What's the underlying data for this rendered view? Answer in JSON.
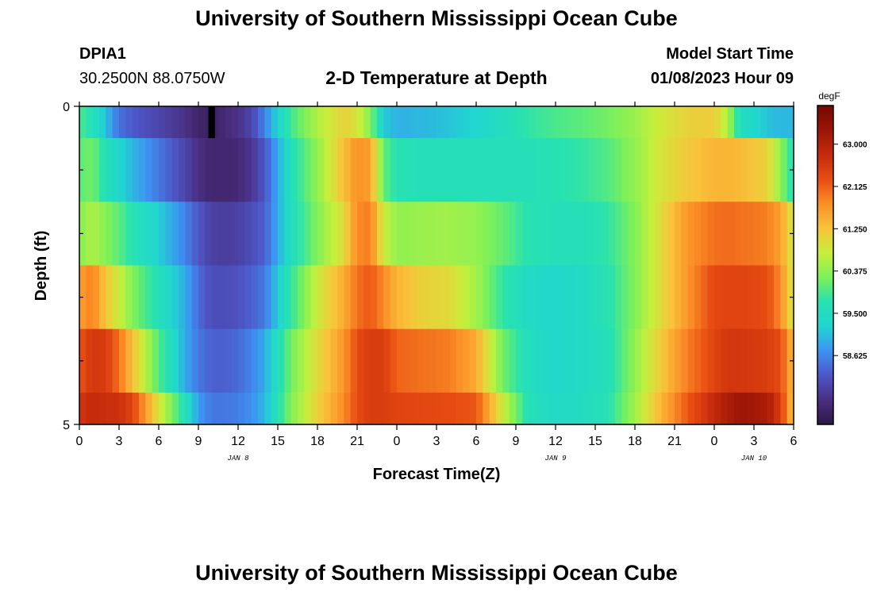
{
  "header": {
    "title": "University of Southern Mississippi Ocean Cube",
    "station_id": "DPIA1",
    "coords": "30.2500N  88.0750W",
    "subtitle": "2-D Temperature at Depth",
    "model_start_label": "Model Start Time",
    "model_start_value": "01/08/2023 Hour 09"
  },
  "footer": {
    "title": "University of Southern Mississippi Ocean Cube"
  },
  "chart_data": {
    "type": "heatmap",
    "title": "2-D Temperature at Depth",
    "xlabel": "Forecast Time(Z)",
    "ylabel": "Depth (ft)",
    "x_tick_labels": [
      "0",
      "3",
      "6",
      "9",
      "12",
      "15",
      "18",
      "21",
      "0",
      "3",
      "6",
      "9",
      "12",
      "15",
      "18",
      "21",
      "0",
      "3",
      "6"
    ],
    "x_tick_hours": [
      0,
      3,
      6,
      9,
      12,
      15,
      18,
      21,
      24,
      27,
      30,
      33,
      36,
      39,
      42,
      45,
      48,
      51,
      54
    ],
    "date_labels": [
      {
        "text": "JAN 8",
        "hour": 12
      },
      {
        "text": "JAN 9",
        "hour": 36
      },
      {
        "text": "JAN 10",
        "hour": 51
      }
    ],
    "xlim": [
      0,
      54
    ],
    "y_tick_labels": [
      "0",
      "5"
    ],
    "ylim": [
      0,
      5
    ],
    "depth_rows": [
      "0-0.5 ft",
      "0.5-1.5 ft",
      "1.5-2.5 ft",
      "2.5-3.5 ft",
      "3.5-4.5 ft",
      "4.5-5 ft"
    ],
    "hour_step": 0.5,
    "time_keyframes_hours": [
      0,
      1,
      2,
      3,
      4,
      6,
      8,
      9,
      10,
      11,
      12,
      13,
      14,
      16,
      18,
      20,
      21,
      22,
      23,
      24,
      26,
      28,
      30,
      32,
      34,
      36,
      38,
      40,
      42,
      44,
      46,
      48,
      49,
      50,
      52,
      53,
      54
    ],
    "rows_keyframe_values_degF": [
      [
        59.95,
        59.65,
        59.05,
        58.45,
        58.25,
        58.0,
        57.75,
        57.5,
        57.45,
        57.6,
        57.75,
        58.0,
        58.6,
        59.9,
        60.6,
        61.1,
        60.9,
        60.3,
        59.15,
        58.95,
        59.0,
        59.1,
        59.25,
        59.5,
        59.8,
        59.95,
        60.05,
        60.2,
        60.45,
        60.85,
        61.1,
        61.15,
        60.6,
        59.5,
        59.1,
        59.0,
        59.0
      ],
      [
        60.05,
        60.2,
        59.6,
        59.3,
        59.0,
        58.5,
        58.0,
        57.7,
        57.55,
        57.55,
        57.6,
        57.8,
        58.2,
        59.6,
        60.4,
        61.3,
        61.75,
        61.6,
        60.1,
        59.7,
        59.6,
        59.6,
        59.6,
        59.6,
        59.6,
        59.7,
        59.8,
        60.0,
        60.4,
        60.9,
        61.2,
        61.4,
        61.4,
        61.35,
        61.1,
        60.4,
        59.6
      ],
      [
        60.3,
        60.6,
        60.3,
        60.05,
        59.7,
        59.2,
        58.6,
        58.2,
        57.95,
        57.9,
        57.95,
        58.1,
        58.3,
        59.5,
        60.3,
        61.0,
        61.8,
        61.9,
        60.8,
        60.4,
        60.45,
        60.5,
        60.4,
        60.1,
        59.7,
        59.6,
        59.6,
        59.8,
        60.3,
        61.0,
        61.7,
        62.0,
        62.05,
        62.0,
        61.9,
        61.6,
        60.8
      ],
      [
        61.6,
        61.9,
        61.2,
        60.8,
        60.3,
        59.6,
        58.9,
        58.4,
        58.1,
        58.1,
        58.15,
        58.3,
        58.5,
        59.8,
        60.8,
        61.5,
        62.0,
        62.2,
        61.8,
        61.4,
        61.1,
        61.0,
        60.5,
        59.8,
        59.4,
        59.3,
        59.4,
        59.7,
        60.3,
        61.0,
        61.7,
        62.35,
        62.4,
        62.4,
        62.3,
        61.8,
        60.8
      ],
      [
        62.2,
        62.6,
        62.5,
        62.0,
        61.3,
        60.0,
        58.9,
        58.5,
        58.3,
        58.3,
        58.4,
        58.6,
        58.9,
        60.2,
        61.0,
        61.7,
        62.3,
        62.5,
        62.5,
        62.1,
        62.0,
        61.9,
        61.5,
        60.2,
        59.5,
        59.3,
        59.4,
        59.6,
        60.4,
        61.2,
        61.9,
        62.4,
        62.6,
        62.6,
        62.5,
        62.3,
        61.3
      ],
      [
        62.6,
        62.8,
        62.7,
        62.7,
        62.4,
        60.9,
        59.6,
        58.8,
        58.5,
        58.5,
        58.55,
        58.7,
        59.0,
        60.3,
        61.1,
        61.8,
        62.3,
        62.5,
        62.5,
        62.4,
        62.35,
        62.3,
        62.2,
        60.8,
        59.6,
        59.4,
        59.45,
        59.7,
        60.5,
        61.4,
        62.2,
        62.8,
        63.1,
        63.3,
        63.1,
        62.5,
        61.2
      ]
    ],
    "missing_cells": [
      {
        "hour": 10,
        "row": 0
      }
    ],
    "colorbar": {
      "unit": "degF",
      "tick_labels": [
        "58.625",
        "59.500",
        "60.375",
        "61.250",
        "62.125",
        "63.000"
      ],
      "tick_values": [
        58.625,
        59.5,
        60.375,
        61.25,
        62.125,
        63.0
      ],
      "range": [
        57.2,
        63.8
      ]
    },
    "colors": {
      "stops": [
        "#2d1746",
        "#4a2f82",
        "#4d56c8",
        "#3d93f2",
        "#20d6d0",
        "#28e2b0",
        "#7cf05a",
        "#c7ef3b",
        "#f8c33a",
        "#fb8f27",
        "#e84c12",
        "#c42a0c",
        "#9c1506",
        "#720802"
      ],
      "missing": "#000000",
      "frame": "#000000"
    }
  }
}
